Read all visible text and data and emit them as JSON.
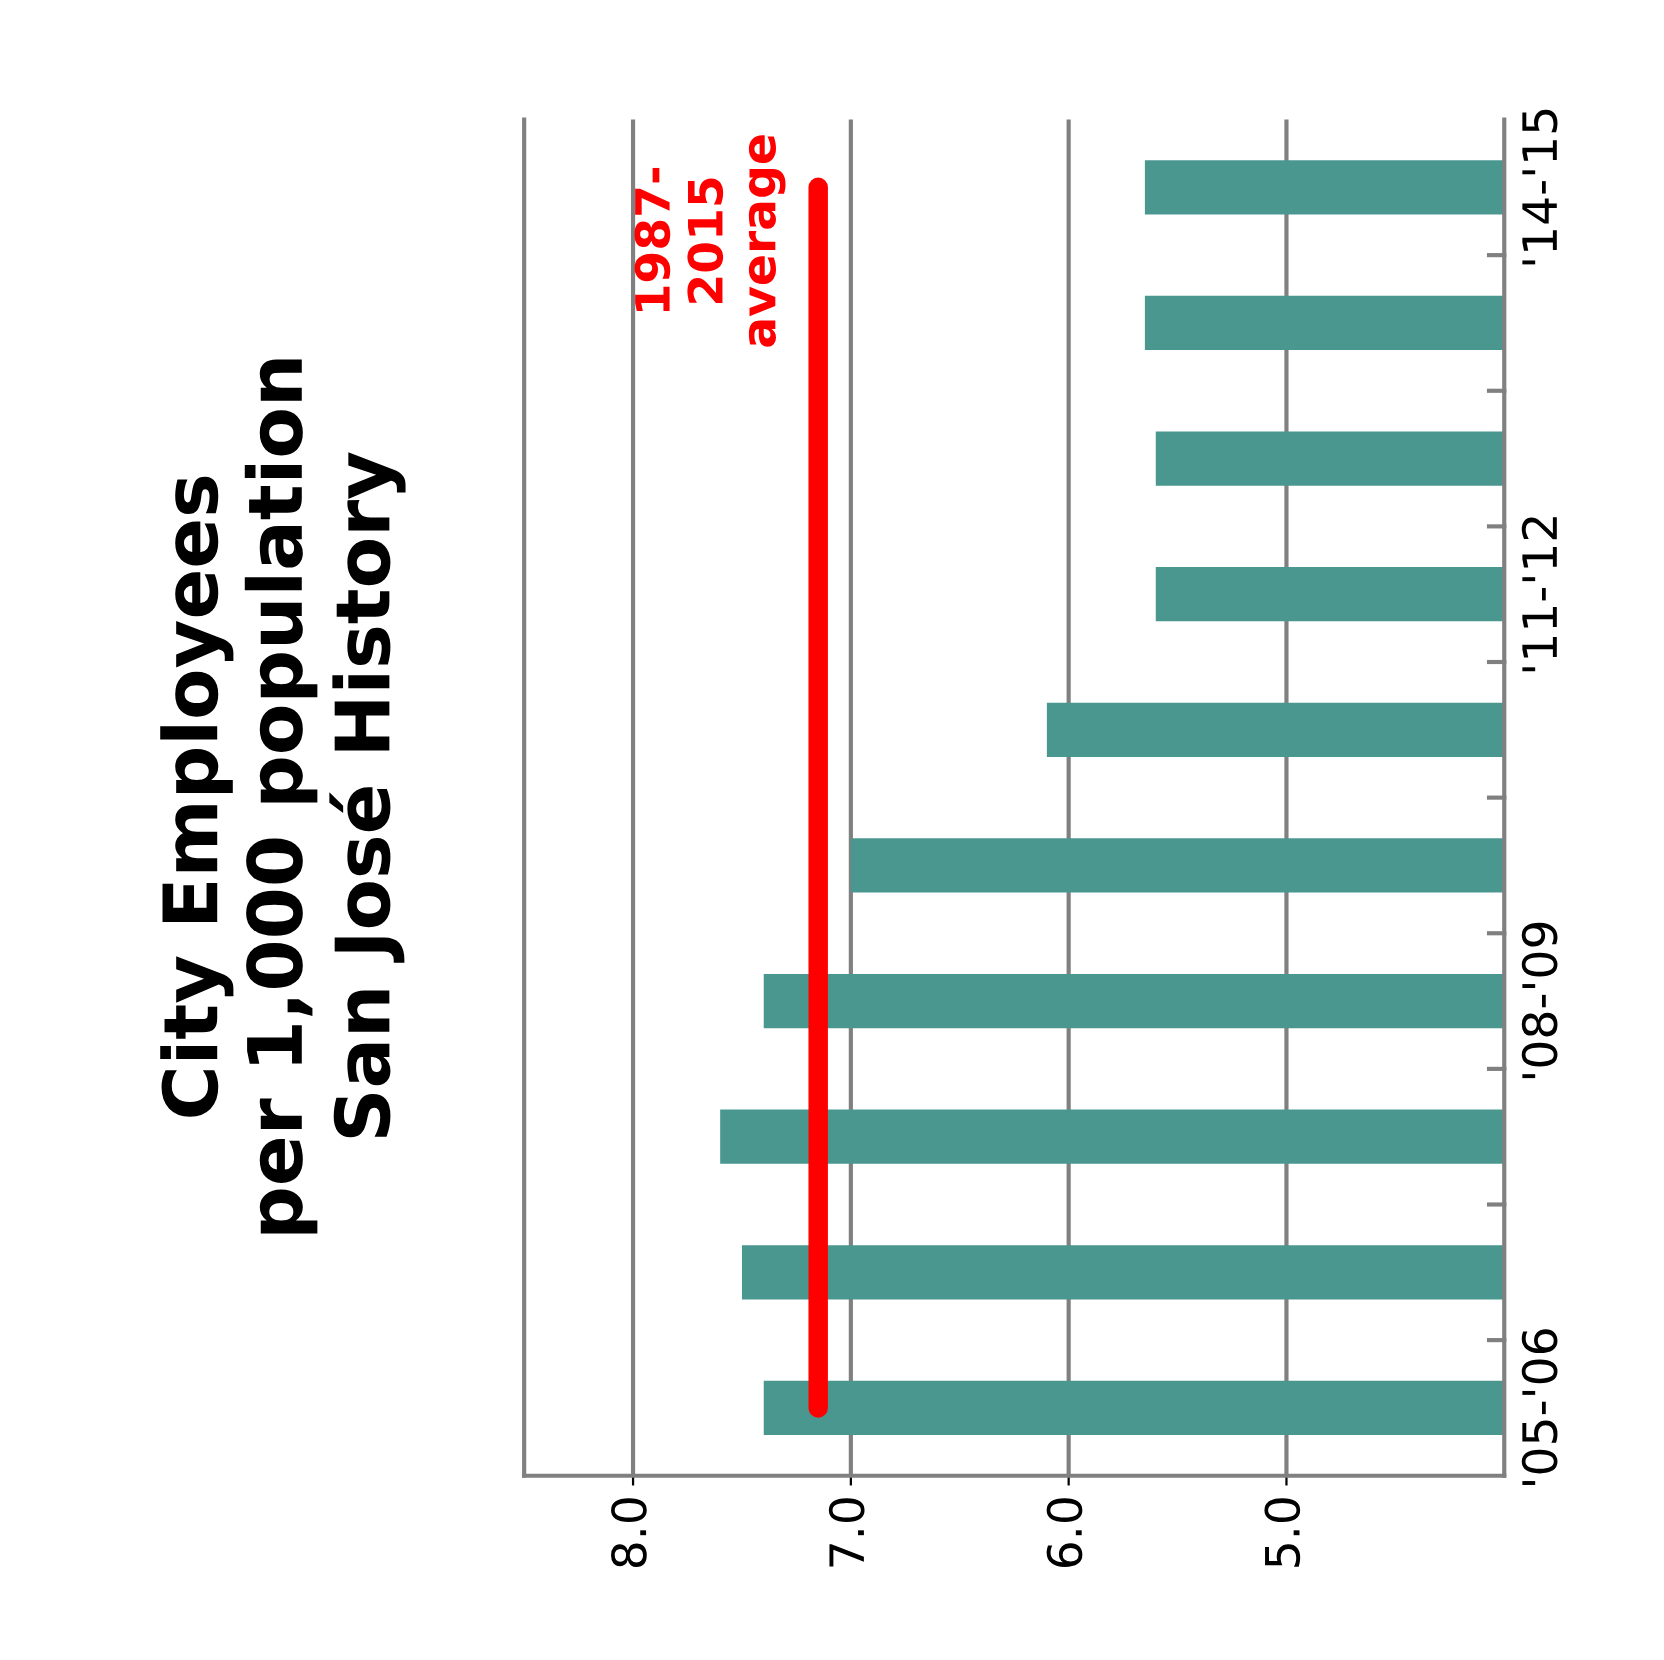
{
  "chart_data": {
    "type": "bar",
    "orientation": "horizontal",
    "title": "City Employees\nper 1,000 population\nSan José History",
    "categories": [
      "'14-'15",
      null,
      null,
      "'11-'12",
      null,
      null,
      "'08-'09",
      null,
      null,
      "'05-'06"
    ],
    "values": [
      5.65,
      5.65,
      5.6,
      5.6,
      6.1,
      7.0,
      7.4,
      7.6,
      7.5,
      7.4
    ],
    "color": "#4a978f",
    "xlim": [
      8.5,
      4.0
    ],
    "xticks": [
      {
        "value": 5,
        "label": "5.0"
      },
      {
        "value": 6,
        "label": "6.0"
      },
      {
        "value": 7,
        "label": "7.0"
      },
      {
        "value": 8,
        "label": "8.0"
      }
    ],
    "ref_lines": [
      {
        "axis": "x",
        "value": 7.15,
        "label": "1987-\n2015\naverage",
        "color": "#ff0000"
      }
    ],
    "grid": "x"
  }
}
